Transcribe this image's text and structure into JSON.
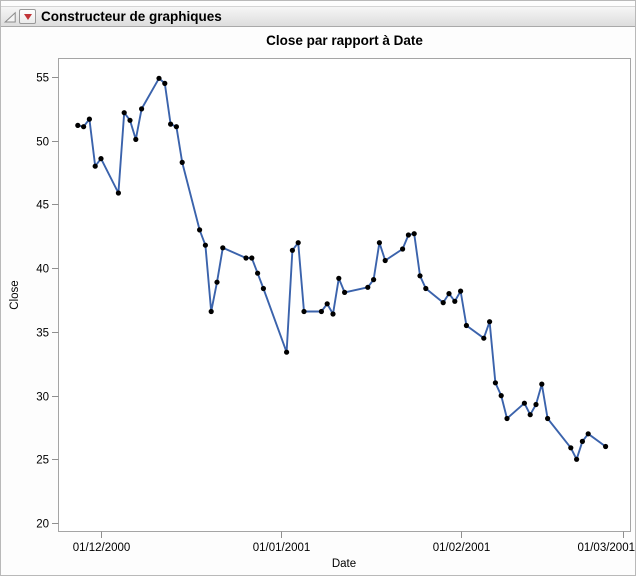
{
  "window": {
    "header": {
      "title": "Constructeur de graphiques",
      "disclosure_icon": "open-disclosure-triangle",
      "menu_icon": "red-triangle-menu"
    }
  },
  "chart_data": {
    "type": "line",
    "title": "Close par rapport à Date",
    "xlabel": "Date",
    "ylabel": "Close",
    "ylim": [
      19.3,
      56.5
    ],
    "yticks": [
      20,
      25,
      30,
      35,
      40,
      45,
      50,
      55
    ],
    "xticks": [
      {
        "date": "2000-12-01",
        "label": "01/12/2000"
      },
      {
        "date": "2001-01-01",
        "label": "01/01/2001"
      },
      {
        "date": "2001-02-01",
        "label": "01/02/2001"
      },
      {
        "date": "2001-03-01",
        "label": "01/03/2001"
      }
    ],
    "grid": false,
    "legend": "none",
    "colors": {
      "line": "#3B63AC",
      "marker": "#000000",
      "frame": "#A5A5A5",
      "tick": "#8f8f8f"
    },
    "series": [
      {
        "name": "Close",
        "points": [
          {
            "date": "2000-11-27",
            "close": 51.2
          },
          {
            "date": "2000-11-28",
            "close": 51.1
          },
          {
            "date": "2000-11-29",
            "close": 51.7
          },
          {
            "date": "2000-11-30",
            "close": 48.0
          },
          {
            "date": "2000-12-01",
            "close": 48.6
          },
          {
            "date": "2000-12-04",
            "close": 45.9
          },
          {
            "date": "2000-12-05",
            "close": 52.2
          },
          {
            "date": "2000-12-06",
            "close": 51.6
          },
          {
            "date": "2000-12-07",
            "close": 50.1
          },
          {
            "date": "2000-12-08",
            "close": 52.5
          },
          {
            "date": "2000-12-11",
            "close": 54.9
          },
          {
            "date": "2000-12-12",
            "close": 54.5
          },
          {
            "date": "2000-12-13",
            "close": 51.3
          },
          {
            "date": "2000-12-14",
            "close": 51.1
          },
          {
            "date": "2000-12-15",
            "close": 48.3
          },
          {
            "date": "2000-12-18",
            "close": 43.0
          },
          {
            "date": "2000-12-19",
            "close": 41.8
          },
          {
            "date": "2000-12-20",
            "close": 36.6
          },
          {
            "date": "2000-12-21",
            "close": 38.9
          },
          {
            "date": "2000-12-22",
            "close": 41.6
          },
          {
            "date": "2000-12-26",
            "close": 40.8
          },
          {
            "date": "2000-12-27",
            "close": 40.8
          },
          {
            "date": "2000-12-28",
            "close": 39.6
          },
          {
            "date": "2000-12-29",
            "close": 38.4
          },
          {
            "date": "2001-01-02",
            "close": 33.4
          },
          {
            "date": "2001-01-03",
            "close": 41.4
          },
          {
            "date": "2001-01-04",
            "close": 42.0
          },
          {
            "date": "2001-01-05",
            "close": 36.6
          },
          {
            "date": "2001-01-08",
            "close": 36.6
          },
          {
            "date": "2001-01-09",
            "close": 37.2
          },
          {
            "date": "2001-01-10",
            "close": 36.4
          },
          {
            "date": "2001-01-11",
            "close": 39.2
          },
          {
            "date": "2001-01-12",
            "close": 38.1
          },
          {
            "date": "2001-01-16",
            "close": 38.5
          },
          {
            "date": "2001-01-17",
            "close": 39.1
          },
          {
            "date": "2001-01-18",
            "close": 42.0
          },
          {
            "date": "2001-01-19",
            "close": 40.6
          },
          {
            "date": "2001-01-22",
            "close": 41.5
          },
          {
            "date": "2001-01-23",
            "close": 42.6
          },
          {
            "date": "2001-01-24",
            "close": 42.7
          },
          {
            "date": "2001-01-25",
            "close": 39.4
          },
          {
            "date": "2001-01-26",
            "close": 38.4
          },
          {
            "date": "2001-01-29",
            "close": 37.3
          },
          {
            "date": "2001-01-30",
            "close": 38.0
          },
          {
            "date": "2001-01-31",
            "close": 37.4
          },
          {
            "date": "2001-02-01",
            "close": 38.2
          },
          {
            "date": "2001-02-02",
            "close": 35.5
          },
          {
            "date": "2001-02-05",
            "close": 34.5
          },
          {
            "date": "2001-02-06",
            "close": 35.8
          },
          {
            "date": "2001-02-07",
            "close": 31.0
          },
          {
            "date": "2001-02-08",
            "close": 30.0
          },
          {
            "date": "2001-02-09",
            "close": 28.2
          },
          {
            "date": "2001-02-12",
            "close": 29.4
          },
          {
            "date": "2001-02-13",
            "close": 28.5
          },
          {
            "date": "2001-02-14",
            "close": 29.3
          },
          {
            "date": "2001-02-15",
            "close": 30.9
          },
          {
            "date": "2001-02-16",
            "close": 28.2
          },
          {
            "date": "2001-02-20",
            "close": 25.9
          },
          {
            "date": "2001-02-21",
            "close": 25.0
          },
          {
            "date": "2001-02-22",
            "close": 26.4
          },
          {
            "date": "2001-02-23",
            "close": 27.0
          },
          {
            "date": "2001-02-26",
            "close": 26.0
          }
        ]
      }
    ]
  }
}
